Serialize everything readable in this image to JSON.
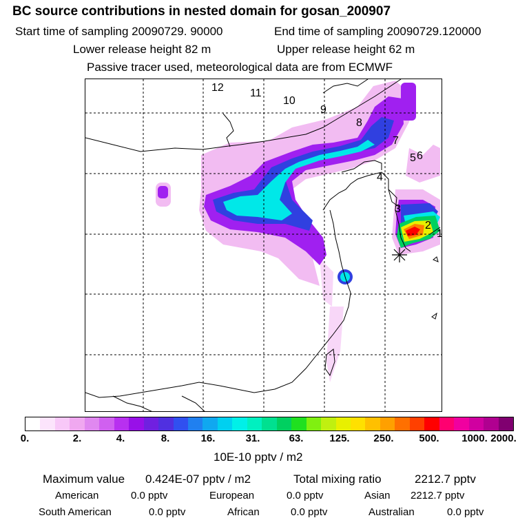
{
  "header": {
    "title": "BC  source contributions in nested domain for gosan_200907",
    "start_label": "Start time of sampling 20090729. 90000",
    "end_label": "End time of sampling 20090729.120000",
    "lower_label": "Lower release height   82 m",
    "upper_label": "Upper release height   62 m",
    "tracer_label": "Passive tracer used, meteorological data are from ECMWF"
  },
  "map": {
    "trajectory_labels": [
      "1",
      "2",
      "3",
      "4",
      "5",
      "6",
      "7",
      "8",
      "9",
      "10",
      "11",
      "12"
    ],
    "receptor": "gosan",
    "colors": {
      "purple": "#a020f0",
      "blue": "#3040e0",
      "cyan": "#00f0e0",
      "hotspot": "#ff0000"
    }
  },
  "colorbar": {
    "colors": [
      "#ffffff",
      "#fce4fc",
      "#f8c8f8",
      "#f0a8f0",
      "#e088f0",
      "#d060f0",
      "#b830f0",
      "#9810e8",
      "#7020e0",
      "#5030e0",
      "#3050f0",
      "#2080f0",
      "#10a8f0",
      "#00d0f0",
      "#00f0e8",
      "#00f0c0",
      "#00e090",
      "#00d060",
      "#20e020",
      "#80f010",
      "#c0f010",
      "#e8f000",
      "#ffe000",
      "#ffc000",
      "#ffa000",
      "#ff7000",
      "#ff4000",
      "#ff0000",
      "#ff0070",
      "#f000a0",
      "#d000a0",
      "#b00090",
      "#800070"
    ],
    "ticks": [
      "0.",
      "2.",
      "4.",
      "8.",
      "16.",
      "31.",
      "63.",
      "125.",
      "250.",
      "500.",
      "1000.",
      "2000."
    ],
    "units": "10E-10 pptv / m2"
  },
  "summary": {
    "max_label": "Maximum value",
    "max_value": "0.424E-07 pptv / m2",
    "total_label": "Total mixing ratio",
    "total_value": "2212.7 pptv",
    "regions": [
      {
        "name": "American",
        "value": "0.0 pptv"
      },
      {
        "name": "European",
        "value": "0.0 pptv"
      },
      {
        "name": "Asian",
        "value": "2212.7 pptv"
      },
      {
        "name": "South American",
        "value": "0.0 pptv"
      },
      {
        "name": "African",
        "value": "0.0 pptv"
      },
      {
        "name": "Australian",
        "value": "0.0 pptv"
      }
    ]
  }
}
